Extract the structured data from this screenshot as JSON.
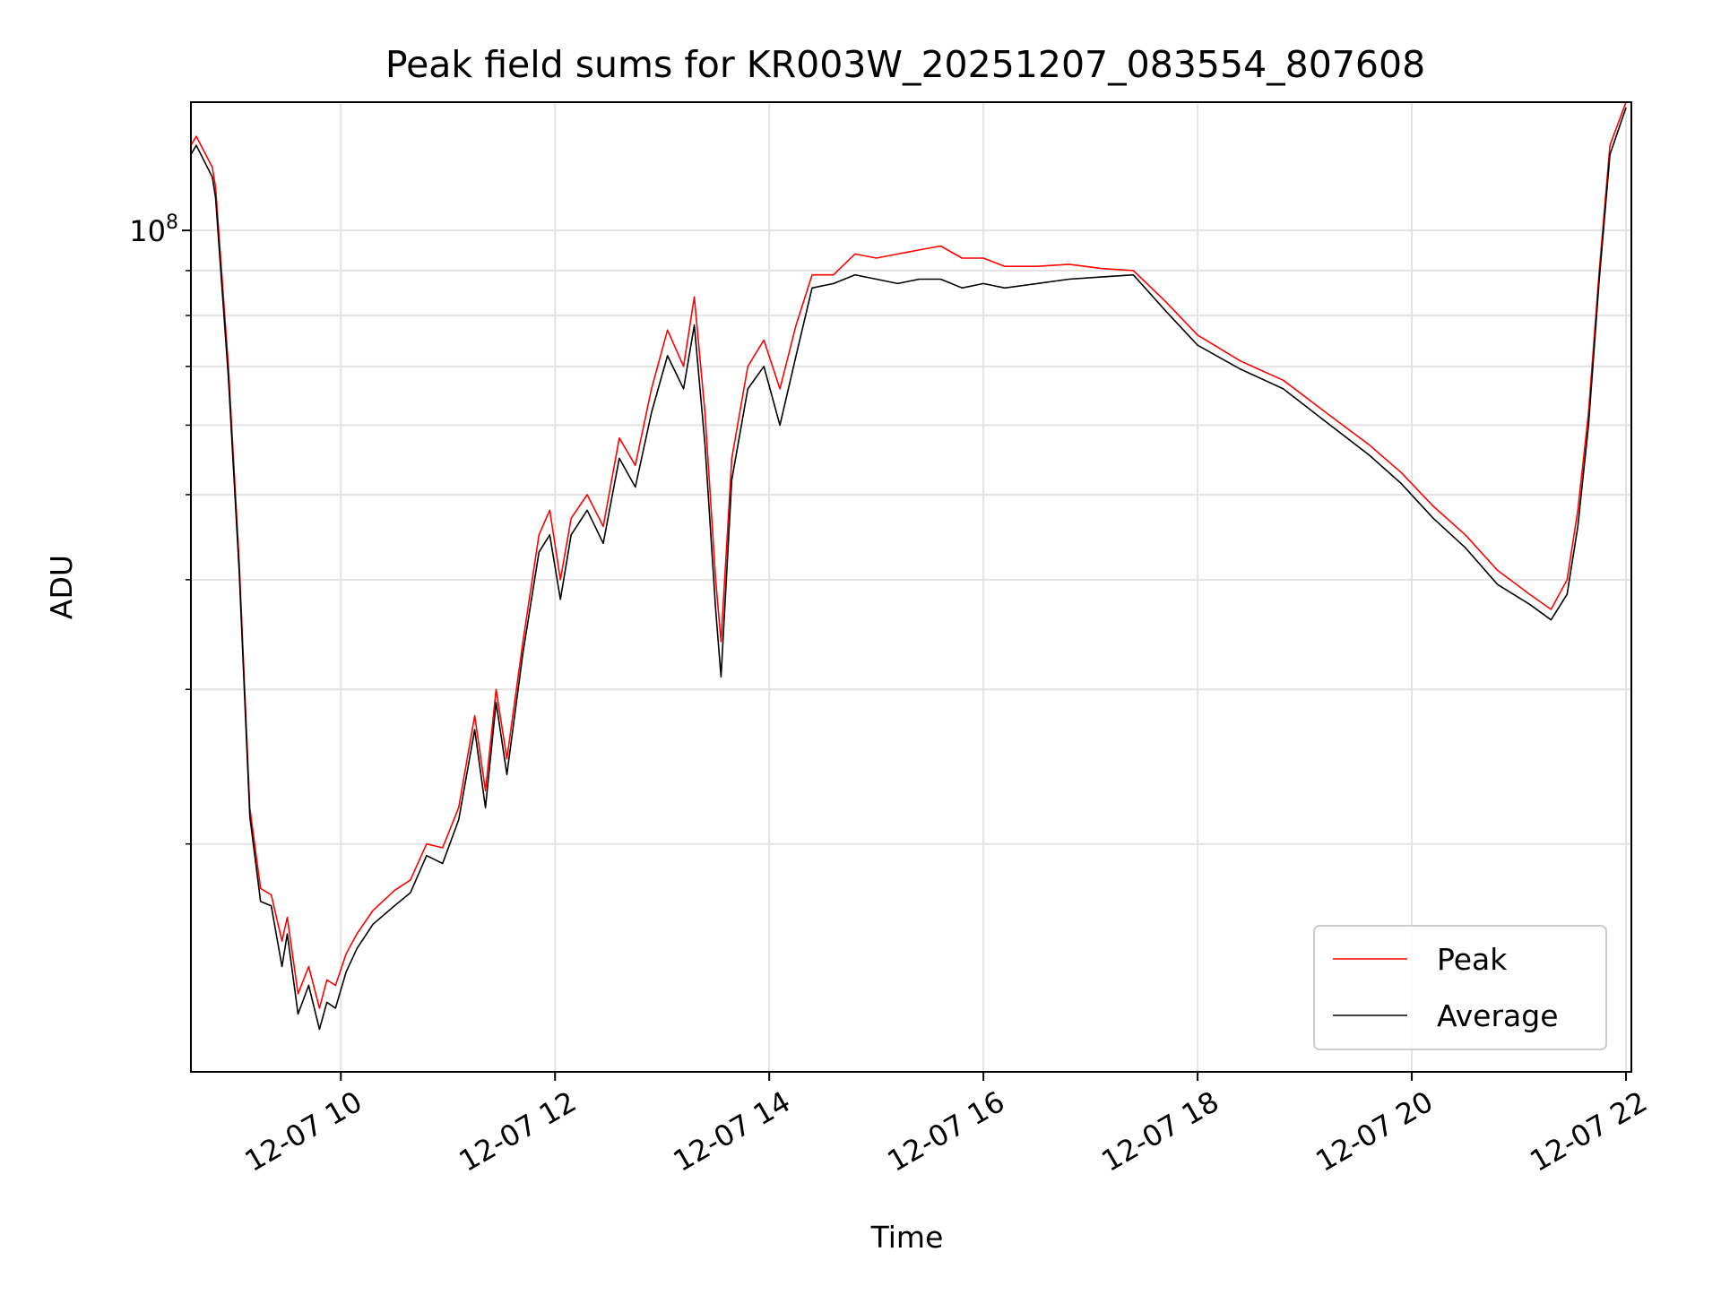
{
  "chart_data": {
    "type": "line",
    "title": "Peak field sums for KR003W_20251207_083554_807608",
    "xlabel": "Time",
    "ylabel": "ADU",
    "y_scale": "log",
    "ylim": [
      11000000,
      140000000
    ],
    "xlim_hours": [
      8.6,
      22.05
    ],
    "x_ticks": [
      {
        "value": 10,
        "label": "12-07 10"
      },
      {
        "value": 12,
        "label": "12-07 12"
      },
      {
        "value": 14,
        "label": "12-07 14"
      },
      {
        "value": 16,
        "label": "12-07 16"
      },
      {
        "value": 18,
        "label": "12-07 18"
      },
      {
        "value": 20,
        "label": "12-07 20"
      },
      {
        "value": 22,
        "label": "12-07 22"
      }
    ],
    "y_major_ticks": [
      {
        "value": 100000000,
        "base": "10",
        "exponent": "8"
      }
    ],
    "y_minor_ticks": [
      20000000,
      30000000,
      40000000,
      50000000,
      60000000,
      70000000,
      80000000,
      90000000
    ],
    "grid": true,
    "legend": {
      "position": "lower right"
    },
    "series_colors": {
      "peak": "#ff0000",
      "average": "#000000"
    },
    "series": [
      {
        "name": "Peak",
        "color": "#ff0000",
        "x": [
          8.6,
          8.65,
          8.8,
          8.83,
          8.95,
          9.05,
          9.15,
          9.25,
          9.35,
          9.45,
          9.5,
          9.6,
          9.7,
          9.8,
          9.87,
          9.95,
          10.05,
          10.15,
          10.3,
          10.5,
          10.65,
          10.8,
          10.95,
          11.1,
          11.25,
          11.35,
          11.45,
          11.55,
          11.7,
          11.85,
          11.95,
          12.05,
          12.15,
          12.3,
          12.45,
          12.6,
          12.75,
          12.9,
          13.05,
          13.2,
          13.3,
          13.4,
          13.5,
          13.55,
          13.65,
          13.8,
          13.95,
          14.1,
          14.25,
          14.4,
          14.6,
          14.8,
          15.0,
          15.2,
          15.4,
          15.6,
          15.8,
          16.0,
          16.2,
          16.5,
          16.8,
          17.1,
          17.4,
          17.7,
          18.0,
          18.4,
          18.8,
          19.2,
          19.6,
          19.9,
          20.2,
          20.5,
          20.8,
          21.1,
          21.3,
          21.45,
          21.55,
          21.65,
          21.75,
          21.85,
          22.0
        ],
        "values": [
          125000000,
          128000000,
          118000000,
          112000000,
          70000000,
          42000000,
          22000000,
          17800000,
          17500000,
          15500000,
          16500000,
          13500000,
          14500000,
          13000000,
          14000000,
          13800000,
          15000000,
          15800000,
          16800000,
          17700000,
          18200000,
          20000000,
          19800000,
          22000000,
          28000000,
          23000000,
          30000000,
          25000000,
          34000000,
          45000000,
          48000000,
          40000000,
          47000000,
          50000000,
          46000000,
          58000000,
          54000000,
          66000000,
          77000000,
          70000000,
          84000000,
          62000000,
          40000000,
          34000000,
          55000000,
          70000000,
          75000000,
          66000000,
          78000000,
          89000000,
          89000000,
          94000000,
          93000000,
          94000000,
          95000000,
          96000000,
          93000000,
          93000000,
          91000000,
          91000000,
          91500000,
          90500000,
          90000000,
          83000000,
          76000000,
          71000000,
          67500000,
          62000000,
          57000000,
          53000000,
          48500000,
          45000000,
          41000000,
          38500000,
          37000000,
          40000000,
          48000000,
          62000000,
          90000000,
          125000000,
          140000000
        ]
      },
      {
        "name": "Average",
        "color": "#000000",
        "x": [
          8.6,
          8.65,
          8.8,
          8.83,
          8.95,
          9.05,
          9.15,
          9.25,
          9.35,
          9.45,
          9.5,
          9.6,
          9.7,
          9.8,
          9.87,
          9.95,
          10.05,
          10.15,
          10.3,
          10.5,
          10.65,
          10.8,
          10.95,
          11.1,
          11.25,
          11.35,
          11.45,
          11.55,
          11.7,
          11.85,
          11.95,
          12.05,
          12.15,
          12.3,
          12.45,
          12.6,
          12.75,
          12.9,
          13.05,
          13.2,
          13.3,
          13.4,
          13.5,
          13.55,
          13.65,
          13.8,
          13.95,
          14.1,
          14.25,
          14.4,
          14.6,
          14.8,
          15.0,
          15.2,
          15.4,
          15.6,
          15.8,
          16.0,
          16.2,
          16.5,
          16.8,
          17.1,
          17.4,
          17.7,
          18.0,
          18.4,
          18.8,
          19.2,
          19.6,
          19.9,
          20.2,
          20.5,
          20.8,
          21.1,
          21.3,
          21.45,
          21.55,
          21.65,
          21.75,
          21.85,
          22.0
        ],
        "values": [
          122000000,
          125000000,
          115000000,
          109000000,
          68000000,
          41000000,
          21500000,
          17200000,
          17000000,
          14500000,
          15800000,
          12800000,
          13800000,
          12300000,
          13200000,
          13000000,
          14300000,
          15200000,
          16200000,
          17000000,
          17600000,
          19400000,
          19000000,
          21300000,
          27000000,
          22000000,
          29000000,
          24000000,
          33000000,
          43000000,
          45000000,
          38000000,
          45000000,
          48000000,
          44000000,
          55000000,
          51000000,
          62000000,
          72000000,
          66000000,
          78000000,
          57000000,
          37000000,
          31000000,
          52000000,
          66000000,
          70000000,
          60000000,
          72000000,
          86000000,
          87000000,
          89000000,
          88000000,
          87000000,
          88000000,
          88000000,
          86000000,
          87000000,
          86000000,
          87000000,
          88000000,
          88500000,
          89000000,
          81000000,
          74000000,
          69500000,
          66000000,
          60500000,
          55500000,
          51500000,
          47000000,
          43500000,
          39500000,
          37500000,
          36000000,
          38500000,
          46000000,
          60000000,
          88000000,
          122000000,
          138000000
        ]
      }
    ]
  }
}
